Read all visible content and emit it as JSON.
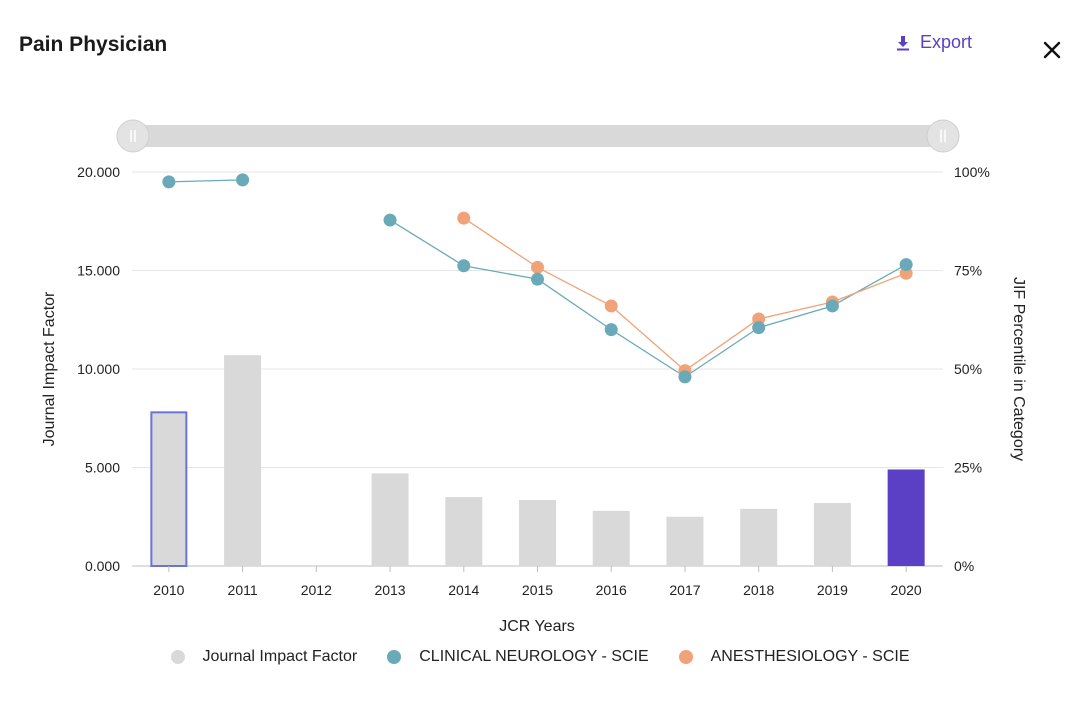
{
  "header": {
    "title": "Pain Physician",
    "export_label": "Export"
  },
  "colors": {
    "accent": "#5b3fc4",
    "bar": "#d9d9d9",
    "selected_bar": "#5b3fc4",
    "outlined_bar_border": "#6a74d8",
    "clinical_neurology": "#6aaab8",
    "anesthesiology": "#f0a378"
  },
  "legend": {
    "items": [
      {
        "label": "Journal Impact Factor",
        "color": "#d9d9d9"
      },
      {
        "label": "CLINICAL NEUROLOGY - SCIE",
        "color": "#6aaab8"
      },
      {
        "label": "ANESTHESIOLOGY - SCIE",
        "color": "#f0a378"
      }
    ]
  },
  "chart_data": {
    "type": "bar",
    "xlabel": "JCR Years",
    "ylabel": "Journal Impact Factor",
    "ylabel_right": "JIF Percentile in Category",
    "categories": [
      "2010",
      "2011",
      "2012",
      "2013",
      "2014",
      "2015",
      "2016",
      "2017",
      "2018",
      "2019",
      "2020"
    ],
    "ylim": [
      0,
      20
    ],
    "yticks": [
      "0.000",
      "5.000",
      "10.000",
      "15.000",
      "20.000"
    ],
    "ylim_right": [
      0,
      100
    ],
    "yticks_right": [
      "0%",
      "25%",
      "50%",
      "75%",
      "100%"
    ],
    "grid": true,
    "bars": {
      "name": "Journal Impact Factor",
      "values": [
        7.8,
        10.7,
        null,
        4.7,
        3.5,
        3.35,
        2.8,
        2.5,
        2.9,
        3.2,
        4.9
      ],
      "outlined_category": "2010",
      "highlighted_category": "2020"
    },
    "series": [
      {
        "name": "CLINICAL NEUROLOGY - SCIE",
        "axis": "right",
        "values": [
          97.5,
          98.0,
          null,
          87.8,
          76.2,
          72.8,
          60.0,
          48.0,
          60.5,
          66.0,
          76.5
        ]
      },
      {
        "name": "ANESTHESIOLOGY - SCIE",
        "axis": "right",
        "values": [
          null,
          null,
          null,
          null,
          88.3,
          75.8,
          66.0,
          49.6,
          62.7,
          67.0,
          74.3
        ]
      }
    ],
    "legend_position": "bottom"
  }
}
